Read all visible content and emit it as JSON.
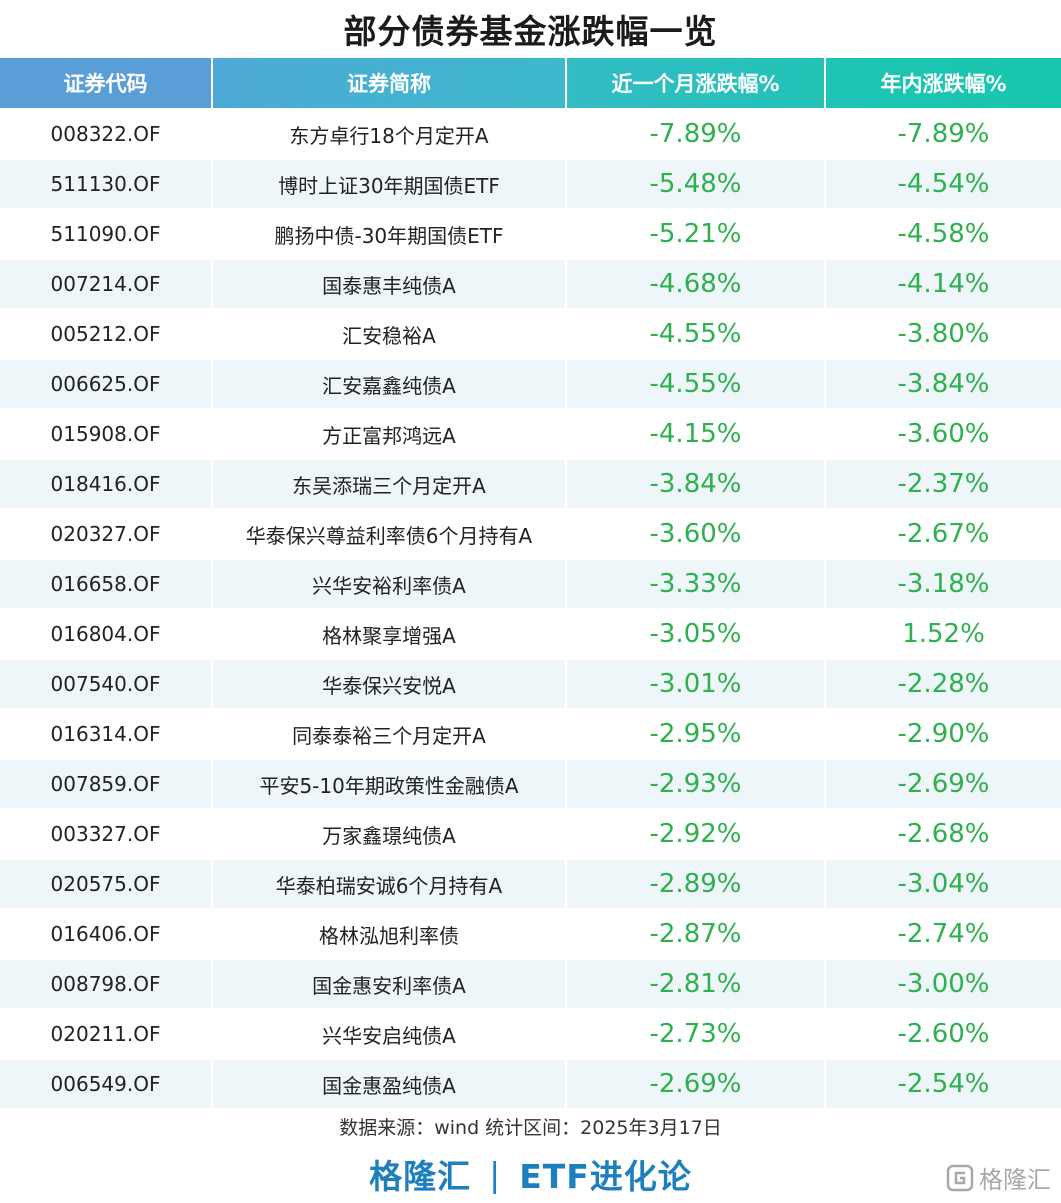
{
  "title": "部分债券基金涨跌幅一览",
  "columns": [
    "证券代码",
    "证券简称",
    "近一个月涨跌幅%",
    "年内涨跌幅%"
  ],
  "rows": [
    {
      "code": "008322.OF",
      "name": "东方卓行18个月定开A",
      "month": "-7.89%",
      "ytd": "-7.89%"
    },
    {
      "code": "511130.OF",
      "name": "博时上证30年期国债ETF",
      "month": "-5.48%",
      "ytd": "-4.54%"
    },
    {
      "code": "511090.OF",
      "name": "鹏扬中债-30年期国债ETF",
      "month": "-5.21%",
      "ytd": "-4.58%"
    },
    {
      "code": "007214.OF",
      "name": "国泰惠丰纯债A",
      "month": "-4.68%",
      "ytd": "-4.14%"
    },
    {
      "code": "005212.OF",
      "name": "汇安稳裕A",
      "month": "-4.55%",
      "ytd": "-3.80%"
    },
    {
      "code": "006625.OF",
      "name": "汇安嘉鑫纯债A",
      "month": "-4.55%",
      "ytd": "-3.84%"
    },
    {
      "code": "015908.OF",
      "name": "方正富邦鸿远A",
      "month": "-4.15%",
      "ytd": "-3.60%"
    },
    {
      "code": "018416.OF",
      "name": "东吴添瑞三个月定开A",
      "month": "-3.84%",
      "ytd": "-2.37%"
    },
    {
      "code": "020327.OF",
      "name": "华泰保兴尊益利率债6个月持有A",
      "month": "-3.60%",
      "ytd": "-2.67%"
    },
    {
      "code": "016658.OF",
      "name": "兴华安裕利率债A",
      "month": "-3.33%",
      "ytd": "-3.18%"
    },
    {
      "code": "016804.OF",
      "name": "格林聚享增强A",
      "month": "-3.05%",
      "ytd": "1.52%"
    },
    {
      "code": "007540.OF",
      "name": "华泰保兴安悦A",
      "month": "-3.01%",
      "ytd": "-2.28%"
    },
    {
      "code": "016314.OF",
      "name": "同泰泰裕三个月定开A",
      "month": "-2.95%",
      "ytd": "-2.90%"
    },
    {
      "code": "007859.OF",
      "name": "平安5-10年期政策性金融债A",
      "month": "-2.93%",
      "ytd": "-2.69%"
    },
    {
      "code": "003327.OF",
      "name": "万家鑫璟纯债A",
      "month": "-2.92%",
      "ytd": "-2.68%"
    },
    {
      "code": "020575.OF",
      "name": "华泰柏瑞安诚6个月持有A",
      "month": "-2.89%",
      "ytd": "-3.04%"
    },
    {
      "code": "016406.OF",
      "name": "格林泓旭利率债",
      "month": "-2.87%",
      "ytd": "-2.74%"
    },
    {
      "code": "008798.OF",
      "name": "国金惠安利率债A",
      "month": "-2.81%",
      "ytd": "-3.00%"
    },
    {
      "code": "020211.OF",
      "name": "兴华安启纯债A",
      "month": "-2.73%",
      "ytd": "-2.60%"
    },
    {
      "code": "006549.OF",
      "name": "国金惠盈纯债A",
      "month": "-2.69%",
      "ytd": "-2.54%"
    }
  ],
  "source": "数据来源：wind 统计区间：2025年3月17日",
  "brand": {
    "left": "格隆汇",
    "separator": "|",
    "right": "ETF进化论"
  },
  "watermark": {
    "text": "格隆汇",
    "icon": "gelonghui-logo-icon"
  },
  "colors": {
    "value_green": "#2db14e",
    "header_blue": "#5a9ed8",
    "header_teal": "#17c6ae",
    "brand_blue": "#1d7fbe",
    "row_stripe": "#eef6fa"
  }
}
